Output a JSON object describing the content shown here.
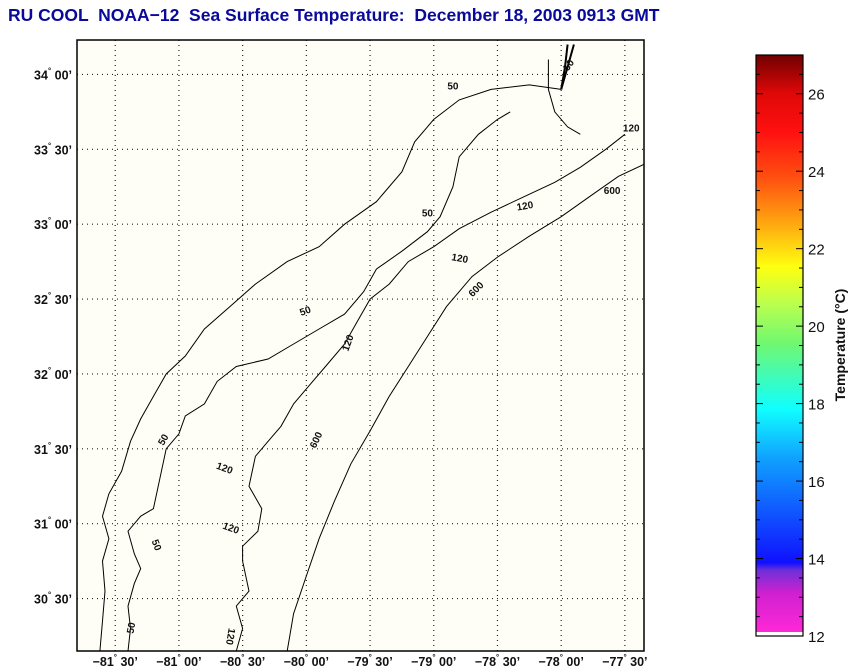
{
  "title": "RU COOL  NOAA−12  Sea Surface Temperature:  December 18, 2003 0913 GMT",
  "map": {
    "background_color": "#fefef7",
    "lon_range": [
      -81.8,
      -77.35
    ],
    "lat_range": [
      30.15,
      34.23
    ],
    "lon_ticks": [
      {
        "value": -81.5,
        "deg": "−81",
        "min": "30’"
      },
      {
        "value": -81.0,
        "deg": "−81",
        "min": "00’"
      },
      {
        "value": -80.5,
        "deg": "−80",
        "min": "30’"
      },
      {
        "value": -80.0,
        "deg": "−80",
        "min": "00’"
      },
      {
        "value": -79.5,
        "deg": "−79",
        "min": "30’"
      },
      {
        "value": -79.0,
        "deg": "−79",
        "min": "00’"
      },
      {
        "value": -78.5,
        "deg": "−78",
        "min": "30’"
      },
      {
        "value": -78.0,
        "deg": "−78",
        "min": "00’"
      },
      {
        "value": -77.5,
        "deg": "−77",
        "min": "30’"
      }
    ],
    "lat_ticks": [
      {
        "value": 34.0,
        "deg": "34",
        "min": "00’"
      },
      {
        "value": 33.5,
        "deg": "33",
        "min": "30’"
      },
      {
        "value": 33.0,
        "deg": "33",
        "min": "00’"
      },
      {
        "value": 32.5,
        "deg": "32",
        "min": "30’"
      },
      {
        "value": 32.0,
        "deg": "32",
        "min": "00’"
      },
      {
        "value": 31.5,
        "deg": "31",
        "min": "30’"
      },
      {
        "value": 31.0,
        "deg": "31",
        "min": "00’"
      },
      {
        "value": 30.5,
        "deg": "30",
        "min": "30’"
      }
    ],
    "degree_symbol": "°",
    "layers": [
      {
        "name": "coastline",
        "points": [
          [
            -81.62,
            30.15
          ],
          [
            -81.6,
            30.35
          ],
          [
            -81.58,
            30.55
          ],
          [
            -81.6,
            30.75
          ],
          [
            -81.55,
            30.9
          ],
          [
            -81.6,
            31.05
          ],
          [
            -81.55,
            31.2
          ],
          [
            -81.45,
            31.35
          ],
          [
            -81.38,
            31.55
          ],
          [
            -81.3,
            31.7
          ],
          [
            -81.2,
            31.85
          ],
          [
            -81.1,
            32.0
          ],
          [
            -80.95,
            32.12
          ],
          [
            -80.8,
            32.3
          ],
          [
            -80.6,
            32.45
          ],
          [
            -80.4,
            32.6
          ],
          [
            -80.15,
            32.75
          ],
          [
            -79.9,
            32.85
          ],
          [
            -79.7,
            33.0
          ],
          [
            -79.45,
            33.15
          ],
          [
            -79.25,
            33.35
          ],
          [
            -79.15,
            33.55
          ],
          [
            -79.0,
            33.7
          ],
          [
            -78.8,
            33.83
          ],
          [
            -78.55,
            33.9
          ],
          [
            -78.25,
            33.93
          ],
          [
            -78.0,
            33.9
          ]
        ]
      },
      {
        "name": "cape-fear-river",
        "points": [
          [
            -78.0,
            33.9
          ],
          [
            -77.95,
            34.05
          ],
          [
            -77.9,
            34.2
          ]
        ]
      },
      {
        "name": "cape-fear-river-west",
        "points": [
          [
            -78.0,
            33.9
          ],
          [
            -77.97,
            34.05
          ],
          [
            -77.95,
            34.2
          ]
        ]
      },
      {
        "name": "contour-50m-south",
        "label": "50",
        "points": [
          [
            -81.4,
            30.15
          ],
          [
            -81.38,
            30.3
          ],
          [
            -81.4,
            30.45
          ],
          [
            -81.35,
            30.6
          ],
          [
            -81.3,
            30.7
          ],
          [
            -81.35,
            30.8
          ],
          [
            -81.4,
            30.95
          ],
          [
            -81.3,
            31.05
          ],
          [
            -81.2,
            31.1
          ],
          [
            -81.15,
            31.3
          ],
          [
            -81.1,
            31.5
          ],
          [
            -81.0,
            31.6
          ],
          [
            -80.95,
            31.72
          ],
          [
            -80.8,
            31.8
          ],
          [
            -80.7,
            31.95
          ],
          [
            -80.55,
            32.05
          ],
          [
            -80.3,
            32.1
          ],
          [
            -80.1,
            32.2
          ],
          [
            -79.9,
            32.3
          ],
          [
            -79.7,
            32.4
          ],
          [
            -79.55,
            32.55
          ],
          [
            -79.45,
            32.7
          ],
          [
            -79.25,
            32.82
          ],
          [
            -79.05,
            32.95
          ],
          [
            -78.95,
            33.05
          ],
          [
            -78.85,
            33.25
          ],
          [
            -78.8,
            33.45
          ],
          [
            -78.65,
            33.6
          ],
          [
            -78.5,
            33.7
          ],
          [
            -78.4,
            33.75
          ]
        ]
      },
      {
        "name": "contour-50m-north",
        "label": "50",
        "points": [
          [
            -78.1,
            34.1
          ],
          [
            -78.1,
            33.9
          ],
          [
            -78.05,
            33.75
          ],
          [
            -77.95,
            33.65
          ],
          [
            -77.85,
            33.6
          ]
        ]
      },
      {
        "name": "contour-120m",
        "label": "120",
        "points": [
          [
            -80.55,
            30.15
          ],
          [
            -80.5,
            30.3
          ],
          [
            -80.55,
            30.45
          ],
          [
            -80.45,
            30.55
          ],
          [
            -80.5,
            30.75
          ],
          [
            -80.5,
            30.85
          ],
          [
            -80.38,
            30.95
          ],
          [
            -80.35,
            31.1
          ],
          [
            -80.45,
            31.25
          ],
          [
            -80.4,
            31.45
          ],
          [
            -80.3,
            31.55
          ],
          [
            -80.2,
            31.65
          ],
          [
            -80.1,
            31.8
          ],
          [
            -80.0,
            31.9
          ],
          [
            -79.85,
            32.05
          ],
          [
            -79.7,
            32.2
          ],
          [
            -79.6,
            32.35
          ],
          [
            -79.5,
            32.5
          ],
          [
            -79.35,
            32.6
          ],
          [
            -79.2,
            32.75
          ],
          [
            -79.0,
            32.85
          ],
          [
            -78.8,
            32.97
          ],
          [
            -78.55,
            33.08
          ],
          [
            -78.3,
            33.18
          ],
          [
            -78.05,
            33.28
          ],
          [
            -77.85,
            33.38
          ],
          [
            -77.65,
            33.5
          ],
          [
            -77.5,
            33.6
          ]
        ]
      },
      {
        "name": "contour-600m",
        "label": "600",
        "points": [
          [
            -80.15,
            30.15
          ],
          [
            -80.1,
            30.4
          ],
          [
            -80.0,
            30.65
          ],
          [
            -79.9,
            30.9
          ],
          [
            -79.78,
            31.15
          ],
          [
            -79.65,
            31.4
          ],
          [
            -79.5,
            31.62
          ],
          [
            -79.35,
            31.85
          ],
          [
            -79.2,
            32.05
          ],
          [
            -79.05,
            32.25
          ],
          [
            -78.9,
            32.45
          ],
          [
            -78.7,
            32.65
          ],
          [
            -78.5,
            32.78
          ],
          [
            -78.25,
            32.92
          ],
          [
            -78.0,
            33.05
          ],
          [
            -77.75,
            33.2
          ],
          [
            -77.55,
            33.32
          ],
          [
            -77.35,
            33.4
          ]
        ]
      }
    ],
    "contour_labels": [
      {
        "text": "50",
        "lon": -78.85,
        "lat": 33.9,
        "angle": 0
      },
      {
        "text": "50",
        "lon": -77.92,
        "lat": 34.05,
        "angle": -55
      },
      {
        "text": "50",
        "lon": -79.05,
        "lat": 33.05,
        "angle": 0
      },
      {
        "text": "50",
        "lon": -80.0,
        "lat": 32.4,
        "angle": -20
      },
      {
        "text": "50",
        "lon": -81.1,
        "lat": 31.55,
        "angle": -60
      },
      {
        "text": "50",
        "lon": -81.2,
        "lat": 30.85,
        "angle": 70
      },
      {
        "text": "50",
        "lon": -81.35,
        "lat": 30.3,
        "angle": -80
      },
      {
        "text": "120",
        "lon": -77.45,
        "lat": 33.62,
        "angle": 0
      },
      {
        "text": "120",
        "lon": -78.28,
        "lat": 33.1,
        "angle": -10
      },
      {
        "text": "120",
        "lon": -78.8,
        "lat": 32.75,
        "angle": 10
      },
      {
        "text": "120",
        "lon": -79.65,
        "lat": 32.2,
        "angle": -70
      },
      {
        "text": "120",
        "lon": -80.65,
        "lat": 31.35,
        "angle": 20
      },
      {
        "text": "120",
        "lon": -80.6,
        "lat": 30.95,
        "angle": 20
      },
      {
        "text": "120",
        "lon": -80.62,
        "lat": 30.25,
        "angle": 100
      },
      {
        "text": "600",
        "lon": -77.6,
        "lat": 33.2,
        "angle": 0
      },
      {
        "text": "600",
        "lon": -78.65,
        "lat": 32.55,
        "angle": -45
      },
      {
        "text": "600",
        "lon": -79.9,
        "lat": 31.55,
        "angle": -65
      }
    ]
  },
  "colorbar": {
    "title": "Temperature (°C)",
    "range": [
      12,
      27
    ],
    "tick_values": [
      12,
      14,
      16,
      18,
      20,
      22,
      24,
      26
    ],
    "tick_labels": [
      "12",
      "14",
      "16",
      "18",
      "20",
      "22",
      "24",
      "26"
    ],
    "stops": [
      {
        "value": 12.0,
        "color": "#ff28d8"
      },
      {
        "value": 13.0,
        "color": "#d020d0"
      },
      {
        "value": 13.6,
        "color": "#7030d8"
      },
      {
        "value": 13.8,
        "color": "#1010ff"
      },
      {
        "value": 15.0,
        "color": "#1050ff"
      },
      {
        "value": 16.5,
        "color": "#10a0ff"
      },
      {
        "value": 17.8,
        "color": "#10ffff"
      },
      {
        "value": 19.5,
        "color": "#70f870"
      },
      {
        "value": 20.5,
        "color": "#b8ff50"
      },
      {
        "value": 21.5,
        "color": "#ffff10"
      },
      {
        "value": 22.5,
        "color": "#ffb010"
      },
      {
        "value": 23.8,
        "color": "#ff5010"
      },
      {
        "value": 25.0,
        "color": "#ff1010"
      },
      {
        "value": 26.0,
        "color": "#e00808"
      },
      {
        "value": 27.0,
        "color": "#700000"
      }
    ]
  }
}
